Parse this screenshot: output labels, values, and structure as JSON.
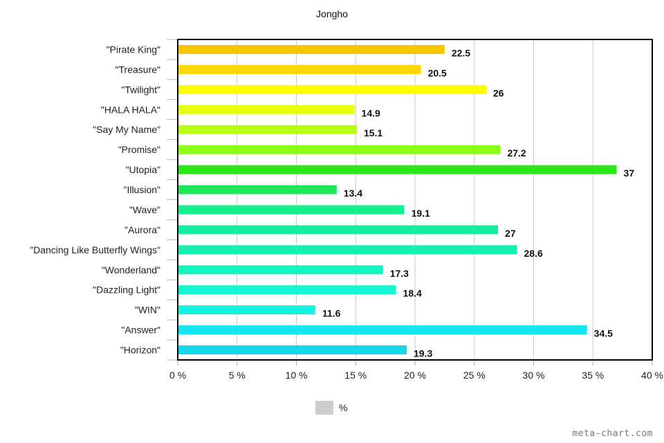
{
  "chart_data": {
    "type": "bar",
    "orientation": "horizontal",
    "title": "Jongho",
    "categories": [
      "\"Pirate King\"",
      "\"Treasure\"",
      "\"Twilight\"",
      "\"HALA HALA\"",
      "\"Say My Name\"",
      "\"Promise\"",
      "\"Utopia\"",
      "\"Illusion\"",
      "\"Wave\"",
      "\"Aurora\"",
      "\"Dancing Like Butterfly Wings\"",
      "\"Wonderland\"",
      "\"Dazzling Light\"",
      "\"WIN\"",
      "\"Answer\"",
      "\"Horizon\""
    ],
    "series": [
      {
        "name": "%",
        "values": [
          22.5,
          20.5,
          26,
          14.9,
          15.1,
          27.2,
          37,
          13.4,
          19.1,
          27,
          28.6,
          17.3,
          18.4,
          11.6,
          34.5,
          19.3
        ]
      }
    ],
    "data_labels": [
      "22.5",
      "20.5",
      "26",
      "14.9",
      "15.1",
      "27.2",
      "37",
      "13.4",
      "19.1",
      "27",
      "28.6",
      "17.3",
      "18.4",
      "11.6",
      "34.5",
      "19.3"
    ],
    "bar_colors": [
      "#f7c600",
      "#fcd800",
      "#ffff00",
      "#e8ff12",
      "#b8ff14",
      "#8cff14",
      "#2ce81a",
      "#1ee85a",
      "#16f08c",
      "#14f0a2",
      "#14f0b0",
      "#14f5c0",
      "#14f5d2",
      "#14f2e2",
      "#14e8ee",
      "#14d8e8"
    ],
    "xlim": [
      0,
      40
    ],
    "xticks": [
      "0 %",
      "5 %",
      "10 %",
      "15 %",
      "20 %",
      "25 %",
      "30 %",
      "35 %",
      "40 %"
    ],
    "grid": true,
    "legend_position": "bottom"
  },
  "legend": {
    "label": "%",
    "color": "#cccccc"
  },
  "watermark": "meta-chart.com"
}
